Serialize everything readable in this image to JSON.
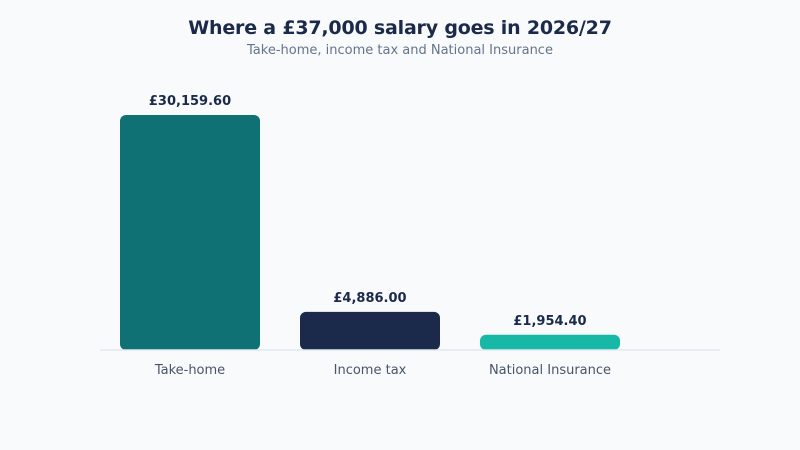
{
  "chart_data": {
    "type": "bar",
    "title": "Where a £37,000 salary goes in 2026/27",
    "subtitle": "Take-home, income tax and National Insurance",
    "categories": [
      "Take-home",
      "Income tax",
      "National Insurance"
    ],
    "values": [
      30159.6,
      4886.0,
      1954.4
    ],
    "value_labels": [
      "£30,159.60",
      "£4,886.00",
      "£1,954.40"
    ],
    "colors": [
      "#0f7173",
      "#1b2a4a",
      "#17b8a6"
    ],
    "ylim": [
      0,
      30159.6
    ],
    "grid": false,
    "legend": "none"
  }
}
